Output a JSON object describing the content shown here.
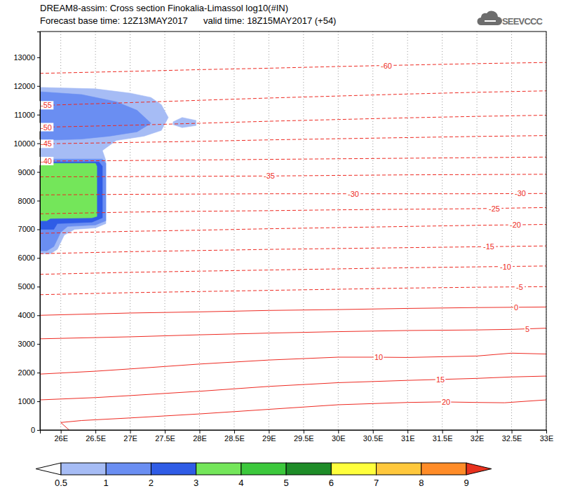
{
  "chart_data": {
    "type": "contour",
    "title": "DREAM8-assim: Cross section Finokalia-Limassol log10(#IN)",
    "subtitle": "Forecast base time: 12Z13MAY2017",
    "valid_time": "valid time: 18Z15MAY2017 (+54)",
    "logo": "SEEVCCC",
    "xlim": [
      25.7,
      33
    ],
    "xticks": [
      {
        "value": 26,
        "label": "26E"
      },
      {
        "value": 26.5,
        "label": "26.5E"
      },
      {
        "value": 27,
        "label": "27E"
      },
      {
        "value": 27.5,
        "label": "27.5E"
      },
      {
        "value": 28,
        "label": "28E"
      },
      {
        "value": 28.5,
        "label": "28.5E"
      },
      {
        "value": 29,
        "label": "29E"
      },
      {
        "value": 29.5,
        "label": "29.5E"
      },
      {
        "value": 30,
        "label": "30E"
      },
      {
        "value": 30.5,
        "label": "30.5E"
      },
      {
        "value": 31,
        "label": "31E"
      },
      {
        "value": 31.5,
        "label": "31.5E"
      },
      {
        "value": 32,
        "label": "32E"
      },
      {
        "value": 32.5,
        "label": "32.5E"
      },
      {
        "value": 33,
        "label": "33E"
      }
    ],
    "ylim": [
      0,
      13900
    ],
    "yticks": [
      0,
      1000,
      2000,
      3000,
      4000,
      5000,
      6000,
      7000,
      8000,
      9000,
      10000,
      11000,
      12000,
      13000
    ],
    "grid": "x",
    "colorbar": {
      "ticks": [
        0.5,
        1,
        2,
        3,
        4,
        5,
        6,
        7,
        8,
        9
      ],
      "colors": [
        "#ffffff",
        "#a6bcf5",
        "#6a8ef2",
        "#2f5ce6",
        "#74e65a",
        "#3cc83c",
        "#1e8c28",
        "#ffff3c",
        "#ffc83c",
        "#ff8c28",
        "#e8321e"
      ]
    },
    "regions": [
      {
        "level": 0.5,
        "polygons": [
          [
            [
              25.7,
              11950
            ],
            [
              26.5,
              11900
            ],
            [
              27.0,
              11750
            ],
            [
              27.3,
              11600
            ],
            [
              27.45,
              11350
            ],
            [
              27.55,
              10900
            ],
            [
              27.45,
              10450
            ],
            [
              27.2,
              10250
            ],
            [
              26.8,
              10100
            ],
            [
              26.6,
              9750
            ],
            [
              26.65,
              9400
            ],
            [
              26.65,
              8000
            ],
            [
              26.65,
              7200
            ],
            [
              26.5,
              7050
            ],
            [
              26.2,
              7000
            ],
            [
              26.05,
              6800
            ],
            [
              25.95,
              6300
            ],
            [
              25.85,
              6150
            ],
            [
              25.7,
              6150
            ]
          ],
          [
            [
              27.62,
              10750
            ],
            [
              27.75,
              10900
            ],
            [
              27.95,
              10800
            ],
            [
              27.95,
              10620
            ],
            [
              27.75,
              10550
            ],
            [
              27.62,
              10650
            ]
          ]
        ]
      },
      {
        "level": 1,
        "polygons": [
          [
            [
              25.7,
              11800
            ],
            [
              26.3,
              11700
            ],
            [
              26.8,
              11450
            ],
            [
              27.1,
              11150
            ],
            [
              27.3,
              10700
            ],
            [
              27.1,
              10400
            ],
            [
              26.7,
              10250
            ],
            [
              26.3,
              10150
            ],
            [
              25.7,
              10100
            ]
          ],
          [
            [
              25.7,
              9450
            ],
            [
              26.6,
              9450
            ],
            [
              26.65,
              9300
            ],
            [
              26.65,
              7300
            ],
            [
              26.5,
              7150
            ],
            [
              26.1,
              7100
            ],
            [
              26.0,
              6900
            ],
            [
              25.9,
              6400
            ],
            [
              25.8,
              6250
            ],
            [
              25.7,
              6250
            ]
          ]
        ]
      },
      {
        "level": 2,
        "polygons": [
          [
            [
              25.7,
              9350
            ],
            [
              26.55,
              9350
            ],
            [
              26.6,
              9200
            ],
            [
              26.6,
              7400
            ],
            [
              26.45,
              7250
            ],
            [
              25.95,
              7200
            ],
            [
              25.9,
              7000
            ],
            [
              25.7,
              7000
            ]
          ]
        ]
      },
      {
        "level": 3,
        "polygons": [
          [
            [
              25.7,
              9300
            ],
            [
              26.5,
              9300
            ],
            [
              26.52,
              9200
            ],
            [
              26.52,
              7450
            ],
            [
              26.45,
              7400
            ],
            [
              25.85,
              7380
            ],
            [
              25.8,
              7300
            ],
            [
              25.7,
              7300
            ]
          ]
        ]
      }
    ],
    "contours": [
      {
        "value": -60,
        "line_style": "dashed",
        "points": [
          [
            25.7,
            12440
          ],
          [
            27,
            12510
          ],
          [
            28,
            12570
          ],
          [
            29,
            12620
          ],
          [
            30,
            12680
          ],
          [
            31,
            12730
          ],
          [
            32,
            12780
          ],
          [
            33,
            12820
          ]
        ]
      },
      {
        "value": -55,
        "line_style": "dashed",
        "points": [
          [
            25.7,
            11320
          ],
          [
            27,
            11420
          ],
          [
            28,
            11500
          ],
          [
            29,
            11580
          ],
          [
            30,
            11650
          ],
          [
            31,
            11720
          ],
          [
            32,
            11780
          ],
          [
            33,
            11830
          ]
        ]
      },
      {
        "value": -50,
        "line_style": "dashed",
        "points": [
          [
            25.7,
            10560
          ],
          [
            27,
            10630
          ],
          [
            28,
            10700
          ],
          [
            29,
            10770
          ],
          [
            30,
            10830
          ],
          [
            31,
            10890
          ],
          [
            32,
            10940
          ],
          [
            33,
            10980
          ]
        ]
      },
      {
        "value": -45,
        "line_style": "dashed",
        "points": [
          [
            25.7,
            9980
          ],
          [
            27,
            10030
          ],
          [
            28,
            10070
          ],
          [
            29,
            10120
          ],
          [
            30,
            10160
          ],
          [
            31,
            10200
          ],
          [
            32,
            10240
          ],
          [
            33,
            10270
          ]
        ]
      },
      {
        "value": -40,
        "line_style": "dashed",
        "points": [
          [
            25.7,
            9380
          ],
          [
            27,
            9400
          ],
          [
            28,
            9420
          ],
          [
            29,
            9440
          ],
          [
            30,
            9460
          ],
          [
            31,
            9480
          ],
          [
            32,
            9500
          ],
          [
            33,
            9520
          ]
        ]
      },
      {
        "value": -35,
        "line_style": "dashed",
        "points": [
          [
            25.7,
            8830
          ],
          [
            27,
            8840
          ],
          [
            28,
            8850
          ],
          [
            29,
            8860
          ],
          [
            30,
            8880
          ],
          [
            31,
            8900
          ],
          [
            32,
            8910
          ],
          [
            33,
            8920
          ]
        ]
      },
      {
        "value": -30,
        "line_style": "dashed",
        "points": [
          [
            25.7,
            8200
          ],
          [
            27,
            8220
          ],
          [
            28,
            8230
          ],
          [
            29,
            8240
          ],
          [
            30,
            8240
          ],
          [
            31,
            8240
          ],
          [
            32,
            8240
          ],
          [
            33,
            8250
          ]
        ]
      },
      {
        "value": -25,
        "line_style": "dashed",
        "points": [
          [
            25.7,
            7540
          ],
          [
            27,
            7600
          ],
          [
            28,
            7630
          ],
          [
            29,
            7650
          ],
          [
            30,
            7680
          ],
          [
            31,
            7700
          ],
          [
            32,
            7720
          ],
          [
            33,
            7760
          ]
        ]
      },
      {
        "value": -20,
        "line_style": "dashed",
        "points": [
          [
            25.7,
            6860
          ],
          [
            27,
            6930
          ],
          [
            28,
            6970
          ],
          [
            29,
            7020
          ],
          [
            30,
            7060
          ],
          [
            31,
            7100
          ],
          [
            32,
            7140
          ],
          [
            33,
            7170
          ]
        ]
      },
      {
        "value": -15,
        "line_style": "dashed",
        "points": [
          [
            25.7,
            6150
          ],
          [
            27,
            6220
          ],
          [
            28,
            6260
          ],
          [
            29,
            6300
          ],
          [
            30,
            6330
          ],
          [
            31,
            6360
          ],
          [
            32,
            6390
          ],
          [
            33,
            6420
          ]
        ]
      },
      {
        "value": -10,
        "line_style": "dashed",
        "points": [
          [
            25.7,
            5430
          ],
          [
            27,
            5500
          ],
          [
            28,
            5540
          ],
          [
            29,
            5580
          ],
          [
            30,
            5620
          ],
          [
            31,
            5660
          ],
          [
            32,
            5690
          ],
          [
            33,
            5720
          ]
        ]
      },
      {
        "value": -5,
        "line_style": "dashed",
        "points": [
          [
            25.7,
            4720
          ],
          [
            27,
            4790
          ],
          [
            28,
            4830
          ],
          [
            29,
            4870
          ],
          [
            30,
            4910
          ],
          [
            31,
            4950
          ],
          [
            32,
            4980
          ],
          [
            33,
            5000
          ]
        ]
      },
      {
        "value": 0,
        "line_style": "solid",
        "points": [
          [
            25.7,
            4000
          ],
          [
            27,
            4080
          ],
          [
            28,
            4120
          ],
          [
            29,
            4170
          ],
          [
            30,
            4200
          ],
          [
            31,
            4240
          ],
          [
            32,
            4270
          ],
          [
            33,
            4290
          ]
        ]
      },
      {
        "value": 5,
        "line_style": "solid",
        "points": [
          [
            25.7,
            3180
          ],
          [
            27,
            3250
          ],
          [
            28,
            3320
          ],
          [
            29,
            3380
          ],
          [
            30,
            3430
          ],
          [
            31,
            3470
          ],
          [
            32,
            3490
          ],
          [
            32.5,
            3510
          ],
          [
            33,
            3550
          ]
        ]
      },
      {
        "value": 10,
        "line_style": "solid",
        "points": [
          [
            25.7,
            1950
          ],
          [
            26.5,
            2050
          ],
          [
            27,
            2130
          ],
          [
            28,
            2300
          ],
          [
            29,
            2440
          ],
          [
            30,
            2540
          ],
          [
            30.5,
            2540
          ],
          [
            31,
            2530
          ],
          [
            32,
            2580
          ],
          [
            32.5,
            2680
          ],
          [
            33,
            2650
          ]
        ]
      },
      {
        "value": 15,
        "line_style": "solid",
        "points": [
          [
            25.7,
            1050
          ],
          [
            26.5,
            1130
          ],
          [
            27,
            1200
          ],
          [
            28,
            1350
          ],
          [
            29,
            1520
          ],
          [
            30,
            1650
          ],
          [
            31,
            1730
          ],
          [
            32,
            1800
          ],
          [
            32.5,
            1850
          ],
          [
            33,
            1880
          ]
        ]
      },
      {
        "value": 20,
        "line_style": "solid",
        "points": [
          [
            26.12,
            0
          ],
          [
            26.0,
            260
          ],
          [
            26.3,
            330
          ],
          [
            27,
            420
          ],
          [
            28,
            560
          ],
          [
            29,
            720
          ],
          [
            30,
            880
          ],
          [
            31,
            960
          ],
          [
            31.5,
            980
          ],
          [
            32,
            960
          ],
          [
            32.4,
            950
          ],
          [
            33,
            1050
          ]
        ]
      }
    ]
  }
}
